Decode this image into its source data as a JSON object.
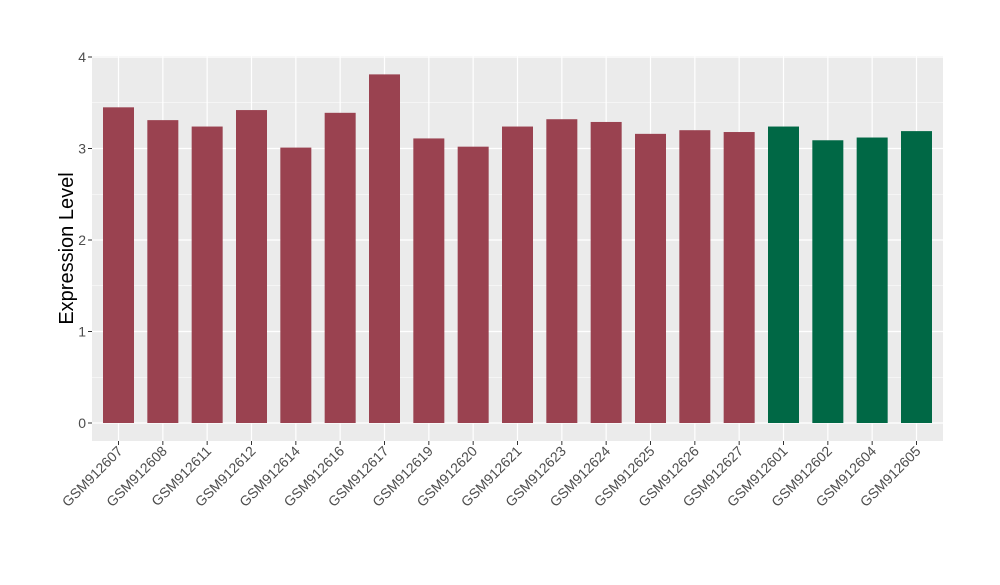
{
  "chart_data": {
    "type": "bar",
    "title": "",
    "xlabel": "",
    "ylabel": "Expression Level",
    "ylim": [
      0,
      4
    ],
    "yticks": [
      0,
      1,
      2,
      3,
      4
    ],
    "grid": true,
    "legend": "none",
    "categories": [
      "GSM912607",
      "GSM912608",
      "GSM912611",
      "GSM912612",
      "GSM912614",
      "GSM912616",
      "GSM912617",
      "GSM912619",
      "GSM912620",
      "GSM912621",
      "GSM912623",
      "GSM912624",
      "GSM912625",
      "GSM912626",
      "GSM912627",
      "GSM912601",
      "GSM912602",
      "GSM912604",
      "GSM912605"
    ],
    "values": [
      3.45,
      3.31,
      3.24,
      3.42,
      3.01,
      3.39,
      3.81,
      3.11,
      3.02,
      3.24,
      3.32,
      3.29,
      3.16,
      3.2,
      3.18,
      3.24,
      3.09,
      3.12,
      3.19
    ],
    "groups": [
      "a",
      "a",
      "a",
      "a",
      "a",
      "a",
      "a",
      "a",
      "a",
      "a",
      "a",
      "a",
      "a",
      "a",
      "a",
      "b",
      "b",
      "b",
      "b"
    ],
    "colors": {
      "a": "#9A4250",
      "b": "#006845",
      "panel_bg": "#EBEBEB",
      "grid": "#FFFFFF",
      "text": "#4D4D4D"
    }
  }
}
